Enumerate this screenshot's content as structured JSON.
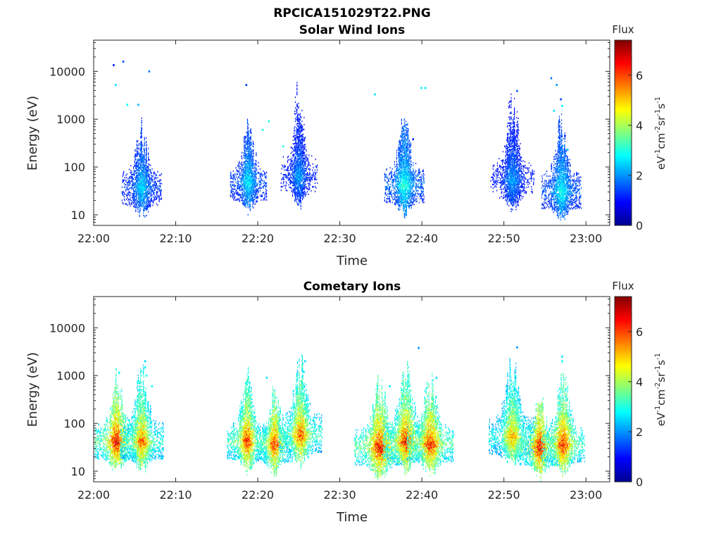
{
  "figure_title": "RPCICA151029T22.PNG",
  "colorbar": {
    "title": "Flux",
    "label_parts": [
      "eV",
      "-1",
      "cm",
      "-2",
      "sr",
      "-1",
      "s",
      "-1"
    ],
    "ticks": [
      0,
      2,
      4,
      6
    ],
    "range": [
      0,
      7.4
    ],
    "colormap": "jet"
  },
  "chart_data": [
    {
      "type": "heatmap",
      "title": "Solar Wind Ions",
      "xlabel": "Time",
      "ylabel": "Energy (eV)",
      "x_range": [
        "22:00",
        "23:00"
      ],
      "x_ticks": [
        "22:00",
        "22:10",
        "22:20",
        "22:30",
        "22:40",
        "22:50",
        "23:00"
      ],
      "y_scale": "log",
      "y_range": [
        6,
        45000
      ],
      "y_ticks": [
        10,
        100,
        1000,
        10000
      ],
      "z_range": [
        0,
        7.4
      ],
      "bursts": [
        {
          "t": "22:05:50",
          "pk": 35,
          "tp": 1.1,
          "ep": 2.4,
          "flux": 2.6
        },
        {
          "t": "22:18:50",
          "pk": 45,
          "tp": 1.0,
          "ep": 2.2,
          "flux": 2.8
        },
        {
          "t": "22:25:00",
          "pk": 60,
          "tp": 1.0,
          "ep": 3.4,
          "flux": 2.2
        },
        {
          "t": "22:37:50",
          "pk": 40,
          "tp": 1.1,
          "ep": 2.3,
          "flux": 3.2
        },
        {
          "t": "22:51:00",
          "pk": 50,
          "tp": 1.2,
          "ep": 3.0,
          "flux": 2.2
        },
        {
          "t": "22:57:00",
          "pk": 30,
          "tp": 1.1,
          "ep": 2.6,
          "flux": 3.0
        }
      ],
      "points": [
        {
          "t": "22:02:20",
          "e": 13500,
          "flux": 1.2
        },
        {
          "t": "22:03:30",
          "e": 16000,
          "flux": 1.5
        },
        {
          "t": "22:02:35",
          "e": 5200,
          "flux": 2.5
        },
        {
          "t": "22:04:00",
          "e": 2000,
          "flux": 2.8
        },
        {
          "t": "22:05:20",
          "e": 2000,
          "flux": 2.2
        },
        {
          "t": "22:06:40",
          "e": 10000,
          "flux": 1.8
        },
        {
          "t": "22:18:30",
          "e": 5200,
          "flux": 1.4
        },
        {
          "t": "22:20:30",
          "e": 600,
          "flux": 3.0
        },
        {
          "t": "22:21:15",
          "e": 900,
          "flux": 3.0
        },
        {
          "t": "22:23:00",
          "e": 270,
          "flux": 3.0
        },
        {
          "t": "22:34:10",
          "e": 3300,
          "flux": 2.6
        },
        {
          "t": "22:39:50",
          "e": 4500,
          "flux": 2.6
        },
        {
          "t": "22:40:20",
          "e": 4500,
          "flux": 2.6
        },
        {
          "t": "22:38:50",
          "e": 380,
          "flux": 1.2
        },
        {
          "t": "22:51:30",
          "e": 3900,
          "flux": 1.6
        },
        {
          "t": "22:55:40",
          "e": 7200,
          "flux": 1.8
        },
        {
          "t": "22:56:20",
          "e": 5200,
          "flux": 2.0
        },
        {
          "t": "22:56:50",
          "e": 2600,
          "flux": 1.4
        },
        {
          "t": "22:56:00",
          "e": 1500,
          "flux": 2.6
        },
        {
          "t": "22:57:00",
          "e": 1900,
          "flux": 2.8
        },
        {
          "t": "22:57:20",
          "e": 450,
          "flux": 1.2
        },
        {
          "t": "22:57:40",
          "e": 230,
          "flux": 2.4
        }
      ]
    },
    {
      "type": "heatmap",
      "title": "Cometary Ions",
      "xlabel": "Time",
      "ylabel": "Energy (eV)",
      "x_range": [
        "22:00",
        "23:00"
      ],
      "x_ticks": [
        "22:00",
        "22:10",
        "22:20",
        "22:30",
        "22:40",
        "22:50",
        "23:00"
      ],
      "y_scale": "log",
      "y_range": [
        6,
        45000
      ],
      "y_ticks": [
        10,
        100,
        1000,
        10000
      ],
      "z_range": [
        0,
        7.4
      ],
      "bursts": [
        {
          "t": "22:02:45",
          "pk": 40,
          "tp": 1.2,
          "ep": 2.3,
          "flux": 6.6
        },
        {
          "t": "22:05:50",
          "pk": 40,
          "tp": 1.2,
          "ep": 2.6,
          "flux": 5.8
        },
        {
          "t": "22:18:40",
          "pk": 40,
          "tp": 1.1,
          "ep": 2.3,
          "flux": 6.2
        },
        {
          "t": "22:22:00",
          "pk": 35,
          "tp": 1.0,
          "ep": 2.0,
          "flux": 6.2
        },
        {
          "t": "22:25:10",
          "pk": 55,
          "tp": 1.2,
          "ep": 2.6,
          "flux": 6.0
        },
        {
          "t": "22:34:50",
          "pk": 30,
          "tp": 1.4,
          "ep": 2.3,
          "flux": 6.6
        },
        {
          "t": "22:38:00",
          "pk": 40,
          "tp": 1.3,
          "ep": 2.5,
          "flux": 6.4
        },
        {
          "t": "22:41:00",
          "pk": 35,
          "tp": 1.3,
          "ep": 2.3,
          "flux": 6.4
        },
        {
          "t": "22:51:00",
          "pk": 50,
          "tp": 1.3,
          "ep": 2.6,
          "flux": 5.4
        },
        {
          "t": "22:54:20",
          "pk": 30,
          "tp": 1.1,
          "ep": 2.0,
          "flux": 6.6
        },
        {
          "t": "22:57:10",
          "pk": 35,
          "tp": 1.2,
          "ep": 2.3,
          "flux": 6.4
        }
      ],
      "points": [
        {
          "t": "22:03:00",
          "e": 1150,
          "flux": 2.8
        },
        {
          "t": "22:06:10",
          "e": 2000,
          "flux": 2.5
        },
        {
          "t": "22:06:10",
          "e": 1500,
          "flux": 2.8
        },
        {
          "t": "22:06:20",
          "e": 1000,
          "flux": 2.8
        },
        {
          "t": "22:07:00",
          "e": 600,
          "flux": 2.8
        },
        {
          "t": "22:21:00",
          "e": 900,
          "flux": 2.6
        },
        {
          "t": "22:25:40",
          "e": 2000,
          "flux": 2.5
        },
        {
          "t": "22:25:30",
          "e": 1200,
          "flux": 2.6
        },
        {
          "t": "22:39:30",
          "e": 3800,
          "flux": 2.0
        },
        {
          "t": "22:41:40",
          "e": 900,
          "flux": 2.5
        },
        {
          "t": "22:36:00",
          "e": 600,
          "flux": 2.6
        },
        {
          "t": "22:51:30",
          "e": 3900,
          "flux": 2.0
        },
        {
          "t": "22:57:00",
          "e": 2500,
          "flux": 2.6
        },
        {
          "t": "22:57:00",
          "e": 2000,
          "flux": 2.8
        }
      ]
    }
  ]
}
